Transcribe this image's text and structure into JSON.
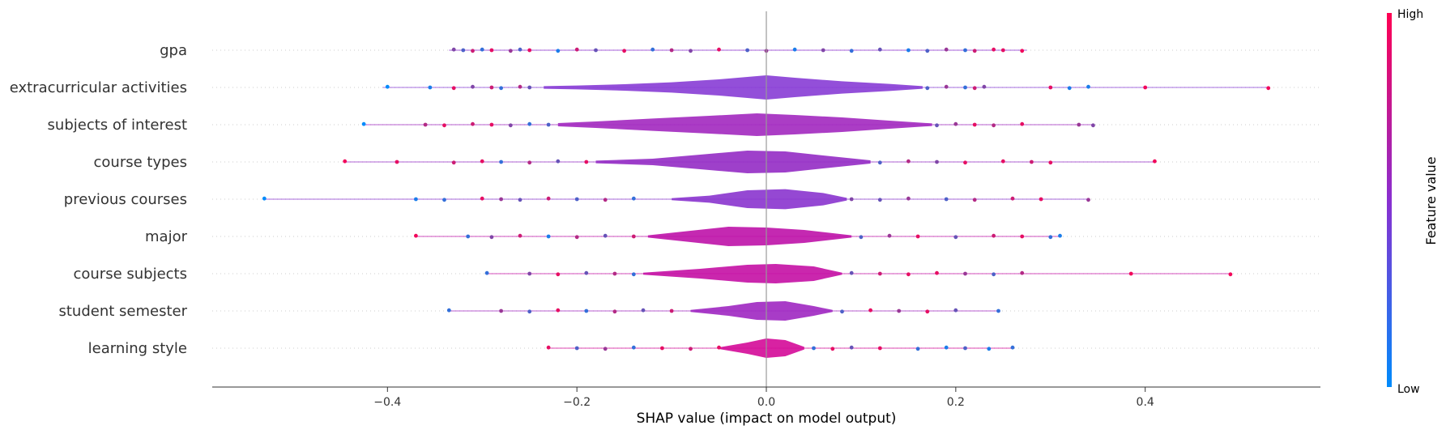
{
  "chart_data": {
    "type": "scatter",
    "subtype": "shap-violin-summary",
    "xlabel": "SHAP value (impact on model output)",
    "xlim": [
      -0.585,
      0.585
    ],
    "x_ticks": [
      -0.4,
      -0.2,
      0.0,
      0.2,
      0.4
    ],
    "x_tick_labels": [
      "−0.4",
      "−0.2",
      "0.0",
      "0.2",
      "0.4"
    ],
    "zero_line": true,
    "grid": false,
    "colorbar": {
      "title": "Feature value",
      "high_label": "High",
      "low_label": "Low",
      "low_color": "#008bfb",
      "high_color": "#ff0052"
    },
    "features": [
      {
        "name": "gpa",
        "range": [
          -0.335,
          0.275
        ],
        "violin": [],
        "violin_color": "#8a2fd0",
        "points": [
          [
            -0.33,
            0.5
          ],
          [
            -0.32,
            0.3
          ],
          [
            -0.31,
            0.8
          ],
          [
            -0.3,
            0.2
          ],
          [
            -0.29,
            0.9
          ],
          [
            -0.27,
            0.6
          ],
          [
            -0.26,
            0.3
          ],
          [
            -0.25,
            0.9
          ],
          [
            -0.22,
            0.1
          ],
          [
            -0.2,
            0.8
          ],
          [
            -0.18,
            0.4
          ],
          [
            -0.15,
            0.9
          ],
          [
            -0.12,
            0.2
          ],
          [
            -0.1,
            0.7
          ],
          [
            -0.08,
            0.5
          ],
          [
            -0.05,
            0.9
          ],
          [
            -0.02,
            0.3
          ],
          [
            0.0,
            0.6
          ],
          [
            0.03,
            0.1
          ],
          [
            0.06,
            0.5
          ],
          [
            0.09,
            0.2
          ],
          [
            0.12,
            0.4
          ],
          [
            0.15,
            0.1
          ],
          [
            0.17,
            0.3
          ],
          [
            0.19,
            0.6
          ],
          [
            0.21,
            0.2
          ],
          [
            0.22,
            0.8
          ],
          [
            0.24,
            0.9
          ],
          [
            0.25,
            0.9
          ],
          [
            0.27,
            0.95
          ]
        ]
      },
      {
        "name": "extracurricular activities",
        "range": [
          -0.405,
          0.53
        ],
        "violin": [
          [
            -0.235,
            0.08
          ],
          [
            -0.2,
            0.12
          ],
          [
            -0.15,
            0.2
          ],
          [
            -0.1,
            0.32
          ],
          [
            -0.05,
            0.5
          ],
          [
            0.0,
            0.75
          ],
          [
            0.03,
            0.6
          ],
          [
            0.08,
            0.38
          ],
          [
            0.13,
            0.22
          ],
          [
            0.165,
            0.08
          ]
        ],
        "violin_color": "#8a40d6",
        "points": [
          [
            -0.4,
            0.0
          ],
          [
            -0.355,
            0.1
          ],
          [
            -0.33,
            0.9
          ],
          [
            -0.31,
            0.5
          ],
          [
            -0.29,
            0.8
          ],
          [
            -0.28,
            0.2
          ],
          [
            -0.26,
            0.7
          ],
          [
            -0.25,
            0.4
          ],
          [
            0.17,
            0.3
          ],
          [
            0.19,
            0.6
          ],
          [
            0.21,
            0.2
          ],
          [
            0.22,
            0.8
          ],
          [
            0.23,
            0.5
          ],
          [
            0.3,
            0.9
          ],
          [
            0.32,
            0.1
          ],
          [
            0.34,
            0.1
          ],
          [
            0.4,
            0.95
          ],
          [
            0.53,
            0.95
          ]
        ]
      },
      {
        "name": "subjects of interest",
        "range": [
          -0.425,
          0.345
        ],
        "violin": [
          [
            -0.22,
            0.1
          ],
          [
            -0.18,
            0.2
          ],
          [
            -0.12,
            0.38
          ],
          [
            -0.06,
            0.55
          ],
          [
            -0.01,
            0.7
          ],
          [
            0.03,
            0.6
          ],
          [
            0.08,
            0.45
          ],
          [
            0.13,
            0.25
          ],
          [
            0.175,
            0.08
          ]
        ],
        "violin_color": "#a42cc0",
        "points": [
          [
            -0.425,
            0.0
          ],
          [
            -0.36,
            0.7
          ],
          [
            -0.34,
            0.9
          ],
          [
            -0.31,
            0.8
          ],
          [
            -0.29,
            0.9
          ],
          [
            -0.27,
            0.5
          ],
          [
            -0.25,
            0.2
          ],
          [
            -0.23,
            0.3
          ],
          [
            0.18,
            0.4
          ],
          [
            0.2,
            0.6
          ],
          [
            0.22,
            0.9
          ],
          [
            0.24,
            0.7
          ],
          [
            0.27,
            0.9
          ],
          [
            0.33,
            0.6
          ],
          [
            0.345,
            0.5
          ]
        ]
      },
      {
        "name": "course types",
        "range": [
          -0.445,
          0.41
        ],
        "violin": [
          [
            -0.18,
            0.08
          ],
          [
            -0.12,
            0.2
          ],
          [
            -0.07,
            0.45
          ],
          [
            -0.02,
            0.7
          ],
          [
            0.02,
            0.65
          ],
          [
            0.06,
            0.4
          ],
          [
            0.11,
            0.1
          ]
        ],
        "violin_color": "#9630c6",
        "points": [
          [
            -0.445,
            0.95
          ],
          [
            -0.39,
            0.9
          ],
          [
            -0.33,
            0.8
          ],
          [
            -0.3,
            0.9
          ],
          [
            -0.28,
            0.2
          ],
          [
            -0.25,
            0.7
          ],
          [
            -0.22,
            0.4
          ],
          [
            -0.19,
            0.9
          ],
          [
            0.12,
            0.3
          ],
          [
            0.15,
            0.7
          ],
          [
            0.18,
            0.5
          ],
          [
            0.21,
            0.9
          ],
          [
            0.25,
            0.9
          ],
          [
            0.28,
            0.8
          ],
          [
            0.3,
            0.9
          ],
          [
            0.41,
            0.95
          ]
        ]
      },
      {
        "name": "previous courses",
        "range": [
          -0.53,
          0.34
        ],
        "violin": [
          [
            -0.1,
            0.06
          ],
          [
            -0.06,
            0.22
          ],
          [
            -0.02,
            0.55
          ],
          [
            0.02,
            0.62
          ],
          [
            0.06,
            0.38
          ],
          [
            0.085,
            0.08
          ]
        ],
        "violin_color": "#8c38cf",
        "points": [
          [
            -0.53,
            0.0
          ],
          [
            -0.37,
            0.1
          ],
          [
            -0.34,
            0.2
          ],
          [
            -0.3,
            0.9
          ],
          [
            -0.28,
            0.6
          ],
          [
            -0.26,
            0.4
          ],
          [
            -0.23,
            0.8
          ],
          [
            -0.2,
            0.3
          ],
          [
            -0.17,
            0.7
          ],
          [
            -0.14,
            0.2
          ],
          [
            0.09,
            0.5
          ],
          [
            0.12,
            0.4
          ],
          [
            0.15,
            0.6
          ],
          [
            0.19,
            0.3
          ],
          [
            0.22,
            0.7
          ],
          [
            0.26,
            0.8
          ],
          [
            0.29,
            0.9
          ],
          [
            0.34,
            0.6
          ]
        ]
      },
      {
        "name": "major",
        "range": [
          -0.37,
          0.31
        ],
        "violin": [
          [
            -0.125,
            0.07
          ],
          [
            -0.08,
            0.35
          ],
          [
            -0.04,
            0.6
          ],
          [
            0.0,
            0.55
          ],
          [
            0.04,
            0.4
          ],
          [
            0.09,
            0.07
          ]
        ],
        "violin_color": "#bf17aa",
        "points": [
          [
            -0.37,
            0.95
          ],
          [
            -0.315,
            0.2
          ],
          [
            -0.29,
            0.5
          ],
          [
            -0.26,
            0.8
          ],
          [
            -0.23,
            0.1
          ],
          [
            -0.2,
            0.7
          ],
          [
            -0.17,
            0.4
          ],
          [
            -0.14,
            0.8
          ],
          [
            0.1,
            0.3
          ],
          [
            0.13,
            0.6
          ],
          [
            0.16,
            0.9
          ],
          [
            0.2,
            0.4
          ],
          [
            0.24,
            0.8
          ],
          [
            0.27,
            0.9
          ],
          [
            0.3,
            0.2
          ],
          [
            0.31,
            0.1
          ]
        ]
      },
      {
        "name": "course subjects",
        "range": [
          -0.295,
          0.49
        ],
        "violin": [
          [
            -0.13,
            0.06
          ],
          [
            -0.07,
            0.3
          ],
          [
            -0.02,
            0.55
          ],
          [
            0.01,
            0.6
          ],
          [
            0.05,
            0.45
          ],
          [
            0.08,
            0.06
          ]
        ],
        "violin_color": "#c615a6",
        "points": [
          [
            -0.295,
            0.2
          ],
          [
            -0.25,
            0.5
          ],
          [
            -0.22,
            0.9
          ],
          [
            -0.19,
            0.4
          ],
          [
            -0.16,
            0.7
          ],
          [
            -0.14,
            0.2
          ],
          [
            0.09,
            0.4
          ],
          [
            0.12,
            0.8
          ],
          [
            0.15,
            0.9
          ],
          [
            0.18,
            0.9
          ],
          [
            0.21,
            0.6
          ],
          [
            0.24,
            0.3
          ],
          [
            0.27,
            0.7
          ],
          [
            0.385,
            0.95
          ],
          [
            0.49,
            0.95
          ]
        ]
      },
      {
        "name": "student semester",
        "range": [
          -0.335,
          0.245
        ],
        "violin": [
          [
            -0.08,
            0.06
          ],
          [
            -0.04,
            0.3
          ],
          [
            -0.01,
            0.55
          ],
          [
            0.02,
            0.6
          ],
          [
            0.05,
            0.3
          ],
          [
            0.07,
            0.06
          ]
        ],
        "violin_color": "#a12bc2",
        "points": [
          [
            -0.335,
            0.2
          ],
          [
            -0.28,
            0.6
          ],
          [
            -0.25,
            0.3
          ],
          [
            -0.22,
            0.9
          ],
          [
            -0.19,
            0.2
          ],
          [
            -0.16,
            0.7
          ],
          [
            -0.13,
            0.4
          ],
          [
            -0.1,
            0.8
          ],
          [
            0.08,
            0.3
          ],
          [
            0.11,
            0.9
          ],
          [
            0.14,
            0.6
          ],
          [
            0.17,
            0.9
          ],
          [
            0.2,
            0.4
          ],
          [
            0.245,
            0.2
          ]
        ]
      },
      {
        "name": "learning style",
        "range": [
          -0.23,
          0.26
        ],
        "violin": [
          [
            -0.05,
            0.05
          ],
          [
            -0.02,
            0.35
          ],
          [
            0.0,
            0.6
          ],
          [
            0.02,
            0.5
          ],
          [
            0.04,
            0.08
          ]
        ],
        "violin_color": "#d50f9a",
        "points": [
          [
            -0.23,
            0.9
          ],
          [
            -0.2,
            0.3
          ],
          [
            -0.17,
            0.6
          ],
          [
            -0.14,
            0.2
          ],
          [
            -0.11,
            0.9
          ],
          [
            -0.08,
            0.8
          ],
          [
            -0.05,
            0.9
          ],
          [
            0.05,
            0.2
          ],
          [
            0.07,
            0.9
          ],
          [
            0.09,
            0.4
          ],
          [
            0.12,
            0.9
          ],
          [
            0.16,
            0.2
          ],
          [
            0.19,
            0.1
          ],
          [
            0.21,
            0.3
          ],
          [
            0.235,
            0.1
          ],
          [
            0.26,
            0.2
          ]
        ]
      }
    ]
  }
}
